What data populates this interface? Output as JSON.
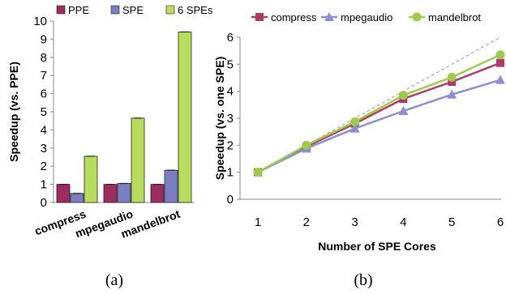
{
  "chart_data": [
    {
      "type": "bar",
      "caption": "(a)",
      "ylabel": "Speedup (vs. PPE)",
      "xlabel": "",
      "categories": [
        "compress",
        "mpegaudio",
        "mandelbrot"
      ],
      "ylim": [
        0,
        10
      ],
      "yticks": [
        0,
        1,
        2,
        3,
        4,
        5,
        6,
        7,
        8,
        9,
        10
      ],
      "grid": false,
      "error_bars": true,
      "legend_position": "top",
      "series": [
        {
          "name": "PPE",
          "color": "#9b2d5f",
          "values": [
            1.0,
            1.0,
            1.0
          ]
        },
        {
          "name": "SPE",
          "color": "#7b7fc2",
          "values": [
            0.5,
            1.05,
            1.78
          ]
        },
        {
          "name": "6 SPEs",
          "color": "#b8dc5c",
          "values": [
            2.55,
            4.65,
            9.4
          ]
        }
      ]
    },
    {
      "type": "line",
      "caption": "(b)",
      "ylabel": "Speedup (vs. one SPE)",
      "xlabel": "Number of SPE Cores",
      "x": [
        1,
        2,
        3,
        4,
        5,
        6
      ],
      "xticks": [
        1,
        2,
        3,
        4,
        5,
        6
      ],
      "ylim": [
        0,
        6
      ],
      "yticks": [
        0,
        1,
        2,
        3,
        4,
        5,
        6
      ],
      "grid": false,
      "legend_position": "top",
      "reference_line": "ideal linear speedup, dashed gray",
      "series": [
        {
          "name": "compress",
          "color": "#b03a66",
          "marker": "square",
          "values": [
            1.0,
            1.95,
            2.8,
            3.72,
            4.35,
            5.05
          ]
        },
        {
          "name": "mpegaudio",
          "color": "#8c8fd0",
          "marker": "triangle",
          "values": [
            1.0,
            1.88,
            2.62,
            3.27,
            3.88,
            4.42
          ]
        },
        {
          "name": "mandelbrot",
          "color": "#9ccc4a",
          "marker": "circle",
          "values": [
            1.0,
            2.0,
            2.87,
            3.85,
            4.52,
            5.35
          ]
        }
      ]
    }
  ]
}
